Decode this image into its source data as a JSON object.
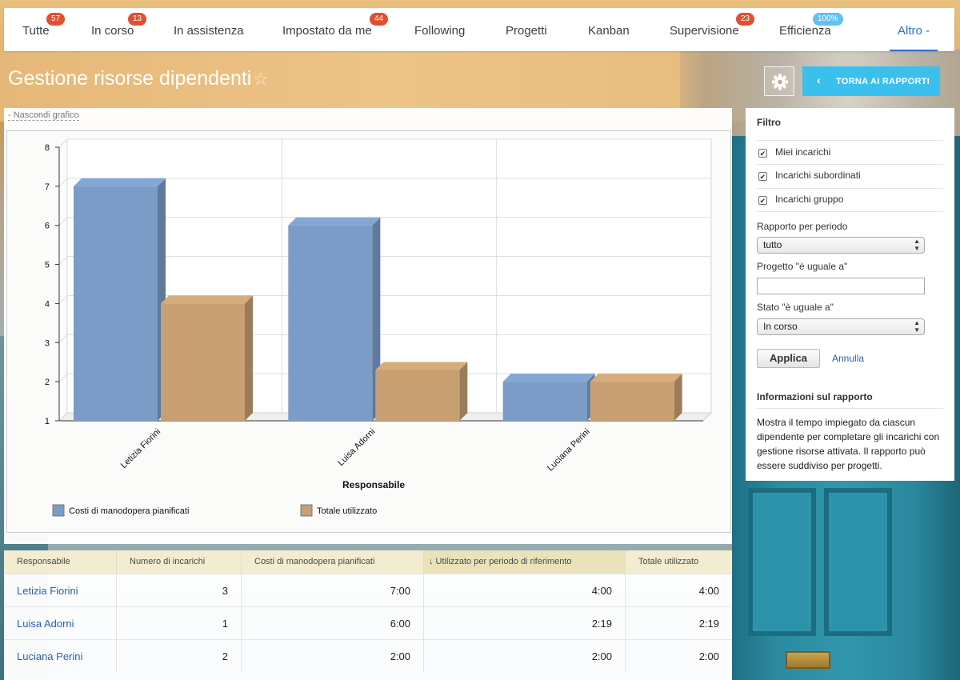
{
  "nav": {
    "tabs": [
      {
        "label": "Tutte",
        "badge": "57"
      },
      {
        "label": "In corso",
        "badge": "13"
      },
      {
        "label": "In assistenza",
        "badge": ""
      },
      {
        "label": "Impostato da me",
        "badge": "44"
      },
      {
        "label": "Following",
        "badge": ""
      },
      {
        "label": "Progetti",
        "badge": ""
      },
      {
        "label": "Kanban",
        "badge": ""
      },
      {
        "label": "Supervisione",
        "badge": "23"
      },
      {
        "label": "Efficienza",
        "badge": "100%"
      },
      {
        "label": "Altro -",
        "badge": ""
      }
    ],
    "active_tab": "Altro -"
  },
  "header": {
    "title": "Gestione risorse dipendenti",
    "star_icon": "star-outline-icon",
    "gear_icon": "gear-icon",
    "back_button": "TORNA AI RAPPORTI"
  },
  "chart_panel": {
    "hide_link": "- Nascondi grafico"
  },
  "chart_data": {
    "type": "bar",
    "categories": [
      "Letizia Fiorini",
      "Luisa Adorni",
      "Luciana Perini"
    ],
    "series": [
      {
        "name": "Costi di manodopera pianificati",
        "values": [
          7,
          6,
          2
        ],
        "color": "#7a9cc6"
      },
      {
        "name": "Totale utilizzato",
        "values": [
          4,
          2.3,
          2
        ],
        "color": "#c79f73"
      }
    ],
    "xlabel": "Responsabile",
    "ylabel": "",
    "ylim": [
      1,
      8
    ],
    "yticks": [
      "1",
      "2",
      "3",
      "4",
      "5",
      "6",
      "7",
      "8"
    ],
    "grid": true,
    "legend_position": "bottom"
  },
  "table": {
    "headers": [
      "Responsabile",
      "Numero di incarichi",
      "Costi di manodopera pianificati",
      "↓ Utilizzato per periodo di riferimento",
      "Totale utilizzato"
    ],
    "rows": [
      [
        "Letizia Fiorini",
        "3",
        "7:00",
        "4:00",
        "4:00"
      ],
      [
        "Luisa Adorni",
        "1",
        "6:00",
        "2:19",
        "2:19"
      ],
      [
        "Luciana Perini",
        "2",
        "2:00",
        "2:00",
        "2:00"
      ]
    ]
  },
  "filter": {
    "title": "Filtro",
    "checkboxes": [
      {
        "label": "Miei incarichi",
        "checked": true
      },
      {
        "label": "Incarichi subordinati",
        "checked": true
      },
      {
        "label": "Incarichi gruppo",
        "checked": true
      }
    ],
    "period_label": "Rapporto per periodo",
    "period_value": "tutto",
    "project_label": "Progetto \"è uguale a\"",
    "project_value": "",
    "status_label": "Stato \"è uguale a\"",
    "status_value": "In corso",
    "apply_button": "Applica",
    "cancel_link": "Annulla",
    "info_title": "Informazioni sul rapporto",
    "info_text": "Mostra il tempo impiegato da ciascun dipendente per completare gli incarichi con gestione risorse attivata. Il rapporto può essere suddiviso per progetti."
  }
}
